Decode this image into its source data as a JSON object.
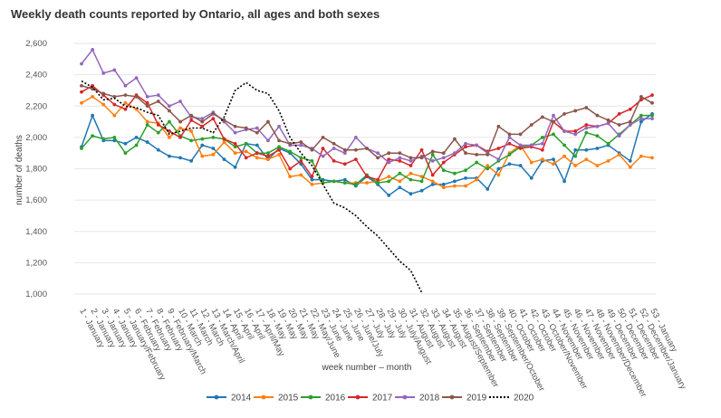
{
  "chart_data": {
    "type": "line",
    "title": "Weekly death counts reported by Ontario, all ages and both sexes",
    "xlabel": "week number – month",
    "ylabel": "number of deaths",
    "ylim": [
      1000,
      2600
    ],
    "yticks": [
      1000,
      1200,
      1400,
      1600,
      1800,
      2000,
      2200,
      2400,
      2600
    ],
    "ytick_labels": [
      "1,000",
      "1,200",
      "1,400",
      "1,600",
      "1,800",
      "2,000",
      "2,200",
      "2,400",
      "2,600"
    ],
    "grid": "horizontal",
    "legend_position": "bottom",
    "categories": [
      "1 - January",
      "2 - January",
      "3 - January",
      "4 - January",
      "5 - January/February",
      "6 - February",
      "7 - February",
      "8 - February",
      "9 - February/March",
      "10 - March",
      "11 - March",
      "12 - March",
      "13 - March/April",
      "14 - April",
      "15 - April",
      "16 - April",
      "17 - April/May",
      "18 - May",
      "19 - May",
      "20 - May",
      "21 - May",
      "22 - May/June",
      "23 - June",
      "24 - June",
      "25 - June",
      "26 - June/July",
      "27 - July",
      "28 - July",
      "29 - July",
      "30 - July/August",
      "31 - August",
      "32 - August",
      "33 - August",
      "34 - August",
      "35 - August/September",
      "36 - September",
      "37 - September",
      "38 - September",
      "39 - September/October",
      "40 - October",
      "41 - October",
      "42 - October",
      "43 - October/November",
      "44 - November",
      "45 - November",
      "46 - November",
      "47 - November",
      "48 - November/December",
      "49 - December",
      "50 - December",
      "51 - December",
      "52 - December/January",
      "53 - January"
    ],
    "series": [
      {
        "name": "2014",
        "color": "#1f77b4",
        "values": [
          1940,
          2140,
          1980,
          1980,
          1960,
          2000,
          1970,
          1920,
          1880,
          1870,
          1850,
          1950,
          1930,
          1860,
          1810,
          1960,
          1950,
          1860,
          1930,
          1900,
          1830,
          1730,
          1730,
          1720,
          1730,
          1690,
          1750,
          1700,
          1630,
          1680,
          1640,
          1660,
          1700,
          1700,
          1720,
          1740,
          1740,
          1670,
          1800,
          1830,
          1820,
          1740,
          1850,
          1860,
          1720,
          1920,
          1920,
          1930,
          1950,
          1900,
          1850,
          2100,
          2150
        ]
      },
      {
        "name": "2015",
        "color": "#ff7f0e",
        "values": [
          2220,
          2260,
          2210,
          2140,
          2220,
          2180,
          2100,
          2090,
          2000,
          2060,
          2040,
          1880,
          1890,
          1970,
          1900,
          1910,
          1870,
          1860,
          1890,
          1750,
          1760,
          1700,
          1710,
          1720,
          1710,
          1710,
          1710,
          1720,
          1750,
          1720,
          1770,
          1750,
          1720,
          1680,
          1690,
          1690,
          1730,
          1820,
          1760,
          1900,
          1950,
          1840,
          1860,
          1830,
          1880,
          1820,
          1860,
          1820,
          1850,
          1890,
          1810,
          1880,
          1870
        ]
      },
      {
        "name": "2016",
        "color": "#2ca02c",
        "values": [
          1930,
          2010,
          1990,
          2000,
          1900,
          1950,
          2080,
          2030,
          2100,
          2010,
          1980,
          1990,
          2000,
          1990,
          1940,
          1960,
          1900,
          1900,
          1940,
          1910,
          1870,
          1850,
          1710,
          1720,
          1710,
          1700,
          1760,
          1710,
          1720,
          1770,
          1730,
          1720,
          1890,
          1790,
          1770,
          1790,
          1840,
          1800,
          1850,
          1890,
          1940,
          1950,
          2000,
          2020,
          1950,
          1880,
          2030,
          2010,
          1960,
          2020,
          2080,
          2140,
          2140
        ]
      },
      {
        "name": "2017",
        "color": "#d62728",
        "values": [
          2290,
          2330,
          2270,
          2210,
          2180,
          2270,
          2220,
          2080,
          2040,
          2000,
          2110,
          2070,
          2120,
          1990,
          1960,
          1870,
          1900,
          1880,
          1920,
          1800,
          1850,
          1750,
          1930,
          1850,
          1830,
          1860,
          1750,
          1730,
          1860,
          1850,
          1820,
          1920,
          1760,
          1840,
          1890,
          1940,
          1950,
          1910,
          1930,
          1960,
          1930,
          1940,
          1920,
          2100,
          2040,
          2040,
          2080,
          2070,
          2090,
          2150,
          2180,
          2240,
          2270
        ]
      },
      {
        "name": "2018",
        "color": "#9467bd",
        "values": [
          2470,
          2560,
          2410,
          2430,
          2330,
          2380,
          2260,
          2270,
          2200,
          2230,
          2130,
          2120,
          2160,
          2100,
          2030,
          2050,
          2060,
          1980,
          2070,
          1950,
          1950,
          1930,
          1880,
          1930,
          1900,
          2000,
          1930,
          1900,
          1840,
          1870,
          1850,
          1880,
          1850,
          1870,
          1900,
          1960,
          1950,
          1900,
          1860,
          2000,
          1950,
          1950,
          1960,
          2140,
          2040,
          2020,
          2060,
          2070,
          2090,
          2010,
          2080,
          2120,
          2120
        ]
      },
      {
        "name": "2019",
        "color": "#8c564b",
        "values": [
          2330,
          2310,
          2280,
          2260,
          2270,
          2260,
          2200,
          2230,
          2170,
          2100,
          2140,
          2100,
          2150,
          2110,
          2070,
          2060,
          2030,
          2100,
          1980,
          1960,
          1970,
          1920,
          2000,
          1960,
          1920,
          1920,
          1930,
          1870,
          1900,
          1900,
          1870,
          1870,
          1910,
          1900,
          1990,
          1900,
          1890,
          1890,
          2070,
          2020,
          2020,
          2080,
          2130,
          2100,
          2150,
          2170,
          2190,
          2140,
          2110,
          2080,
          2100,
          2260,
          2220
        ]
      },
      {
        "name": "2020",
        "color": "#000000",
        "dashed": true,
        "values": [
          2360,
          2320,
          2240,
          2250,
          2200,
          2190,
          2160,
          2140,
          2020,
          2040,
          2060,
          2060,
          2030,
          2130,
          2300,
          2350,
          2300,
          2280,
          2170,
          2000,
          1900,
          1820,
          1700,
          1580,
          1550,
          1500,
          1430,
          1370,
          1290,
          1210,
          1150,
          1010,
          null,
          null,
          null,
          null,
          null,
          null,
          null,
          null,
          null,
          null,
          null,
          null,
          null,
          null,
          null,
          null,
          null,
          null,
          null,
          null,
          null
        ]
      }
    ]
  }
}
